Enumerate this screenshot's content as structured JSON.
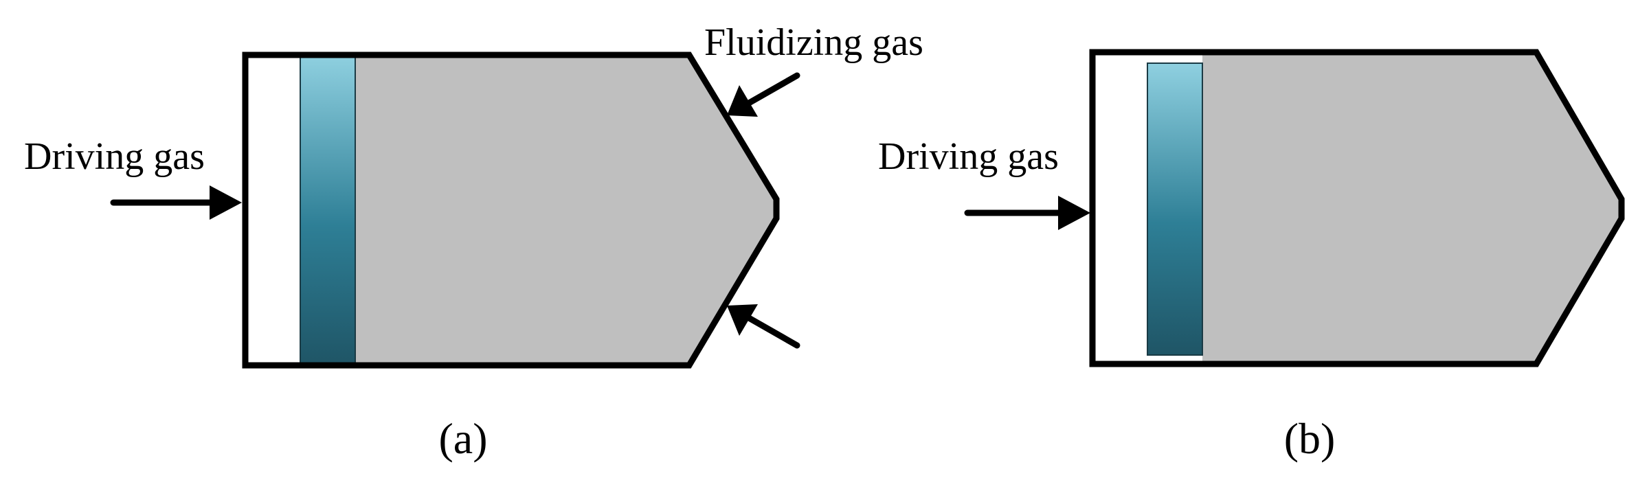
{
  "panel_a": {
    "caption": "(a)",
    "driving_gas_label": "Driving gas",
    "fluidizing_gas_label": "Fluidizing gas"
  },
  "panel_b": {
    "caption": "(b)",
    "driving_gas_label": "Driving gas"
  },
  "colors": {
    "outline": "#000000",
    "powder_fill": "#bfbfbf",
    "piston_top": "#8fd0e0",
    "piston_bottom": "#1f5566",
    "background": "#ffffff"
  }
}
